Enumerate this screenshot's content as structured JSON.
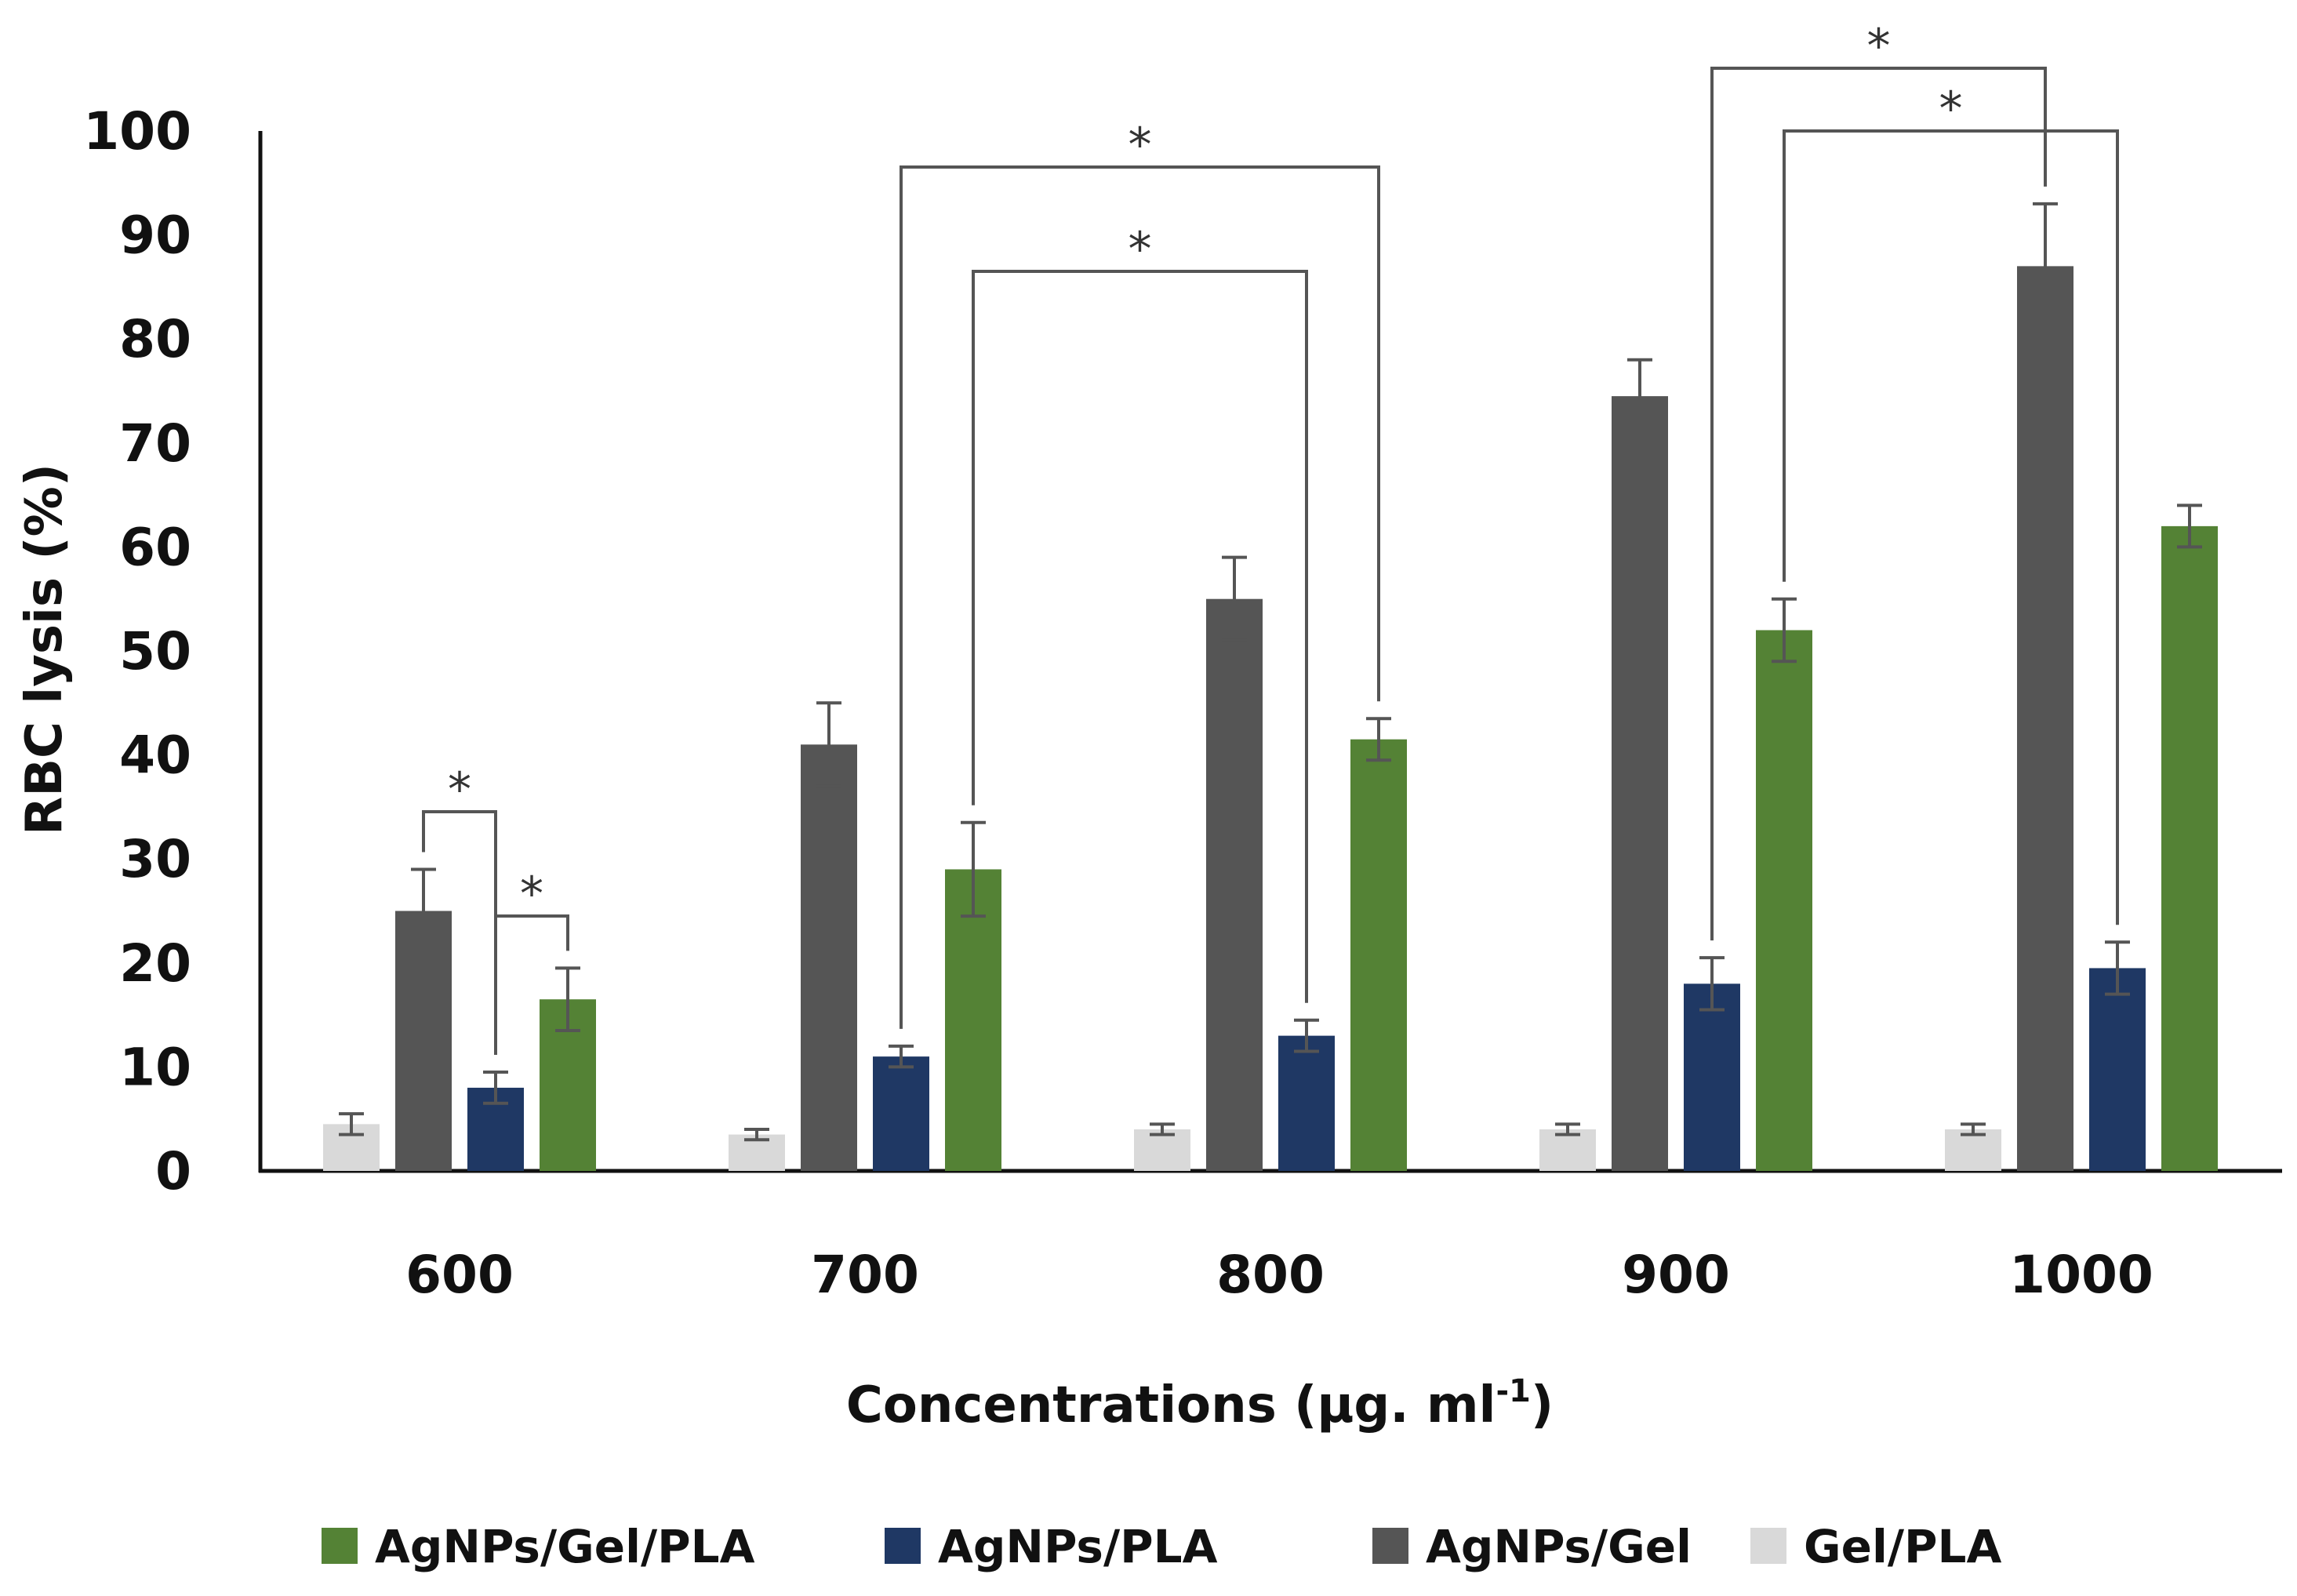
{
  "chart_data": {
    "type": "bar",
    "title": "",
    "xlabel": "Concentrations (µg. ml",
    "xlabel_superscript": "-1",
    "xlabel_suffix": ")",
    "ylabel": "RBC lysis (%)",
    "ylim": [
      0,
      100
    ],
    "yticks": [
      0,
      10,
      20,
      30,
      40,
      50,
      60,
      70,
      80,
      90,
      100
    ],
    "categories": [
      "600",
      "700",
      "800",
      "900",
      "1000"
    ],
    "series": [
      {
        "name": "Gel/PLA",
        "color": "#d9d9d9",
        "values": [
          4.5,
          3.5,
          4.0,
          4.0,
          4.0
        ],
        "errors": [
          1.0,
          0.5,
          0.5,
          0.5,
          0.5
        ]
      },
      {
        "name": "AgNPs/Gel",
        "color": "#555555",
        "values": [
          25,
          41,
          55,
          74.5,
          87
        ],
        "errors": [
          4.0,
          4.0,
          4.0,
          3.5,
          6.0
        ]
      },
      {
        "name": "AgNPs/PLA",
        "color": "#1f3864",
        "values": [
          8,
          11,
          13,
          18,
          19.5
        ],
        "errors": [
          1.5,
          1.0,
          1.5,
          2.5,
          2.5
        ]
      },
      {
        "name": "AgNPs/Gel/PLA",
        "color": "#548235",
        "values": [
          16.5,
          29,
          41.5,
          52,
          62
        ],
        "errors": [
          3.0,
          4.5,
          2.0,
          3.0,
          2.0
        ]
      }
    ],
    "legend_order": [
      "AgNPs/Gel/PLA",
      "AgNPs/PLA",
      "AgNPs/Gel",
      "Gel/PLA"
    ],
    "legend_position": "bottom",
    "grid": false,
    "significance": [
      {
        "from": {
          "category": 0,
          "series": 1
        },
        "to": {
          "category": 0,
          "series": 2
        },
        "label": "*"
      },
      {
        "from": {
          "category": 0,
          "series": 2
        },
        "to": {
          "category": 0,
          "series": 3
        },
        "label": "*"
      },
      {
        "from": {
          "category": 1,
          "series": 2
        },
        "to": {
          "category": 2,
          "series": 3
        },
        "label": "*"
      },
      {
        "from": {
          "category": 1,
          "series": 3
        },
        "to": {
          "category": 2,
          "series": 2
        },
        "label": "*"
      },
      {
        "from": {
          "category": 3,
          "series": 2
        },
        "to": {
          "category": 4,
          "series": 1
        },
        "label": "*"
      },
      {
        "from": {
          "category": 3,
          "series": 3
        },
        "to": {
          "category": 4,
          "series": 2
        },
        "label": "*"
      }
    ]
  }
}
